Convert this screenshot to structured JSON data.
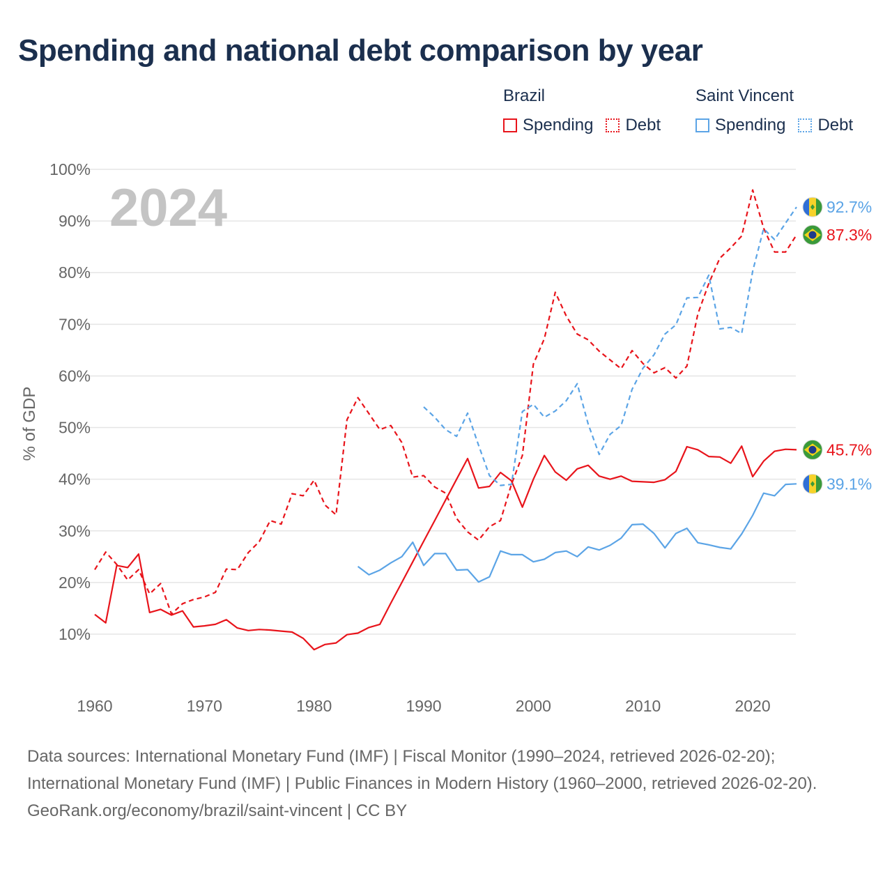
{
  "title": "Spending and national debt comparison by year",
  "legend": {
    "groups": [
      {
        "country": "Brazil",
        "items": [
          {
            "label": "Spending",
            "style": "solid",
            "color": "#e8141b"
          },
          {
            "label": "Debt",
            "style": "dotted",
            "color": "#e8141b"
          }
        ]
      },
      {
        "country": "Saint Vincent",
        "items": [
          {
            "label": "Spending",
            "style": "solid",
            "color": "#5ba4e6"
          },
          {
            "label": "Debt",
            "style": "dotted",
            "color": "#5ba4e6"
          }
        ]
      }
    ]
  },
  "year_watermark": "2024",
  "colors": {
    "brazil": "#e8141b",
    "saint_vincent": "#5ba4e6",
    "grid": "#e5e5e5",
    "axis_text": "#666666",
    "title": "#1b2f4e",
    "watermark": "#c4c4c4"
  },
  "chart_data": {
    "type": "line",
    "title": "Spending and national debt comparison by year",
    "xlabel": "",
    "ylabel": "% of GDP",
    "xlim": [
      1960,
      2024
    ],
    "ylim": [
      0,
      100
    ],
    "x_ticks": [
      "1960",
      "1970",
      "1980",
      "1990",
      "2000",
      "2010",
      "2020"
    ],
    "y_ticks": [
      "10%",
      "20%",
      "30%",
      "40%",
      "50%",
      "60%",
      "70%",
      "80%",
      "90%",
      "100%"
    ],
    "series": [
      {
        "name": "Brazil Spending",
        "country": "Brazil",
        "style": "solid",
        "color": "#e8141b",
        "x": [
          1960,
          1961,
          1962,
          1963,
          1964,
          1965,
          1966,
          1967,
          1968,
          1969,
          1970,
          1971,
          1972,
          1973,
          1974,
          1975,
          1976,
          1977,
          1978,
          1979,
          1980,
          1981,
          1982,
          1983,
          1984,
          1985,
          1986,
          1987,
          1988,
          1989,
          1990,
          1991,
          1992,
          1993,
          1994,
          1995,
          1996,
          1997,
          1998,
          1999,
          2000,
          2001,
          2002,
          2003,
          2004,
          2005,
          2006,
          2007,
          2008,
          2009,
          2010,
          2011,
          2012,
          2013,
          2014,
          2015,
          2016,
          2017,
          2018,
          2019,
          2020,
          2021,
          2022,
          2023,
          2024
        ],
        "values": [
          13.8,
          12.2,
          23.3,
          22.9,
          25.5,
          14.2,
          14.8,
          13.7,
          14.5,
          11.4,
          11.6,
          11.9,
          12.8,
          11.2,
          10.7,
          10.9,
          10.8,
          10.6,
          10.4,
          9.2,
          7.0,
          8.0,
          8.3,
          9.9,
          10.2,
          11.3,
          11.9,
          16.0,
          20.0,
          24.0,
          28.0,
          32.0,
          36.0,
          40.0,
          44.0,
          38.3,
          38.6,
          41.3,
          39.7,
          34.6,
          40.0,
          44.6,
          41.4,
          39.8,
          42.0,
          42.7,
          40.6,
          40.0,
          40.6,
          39.6,
          39.5,
          39.4,
          39.9,
          41.5,
          46.3,
          45.7,
          44.4,
          44.3,
          43.1,
          46.4,
          40.5,
          43.5,
          45.4,
          45.8,
          45.7
        ]
      },
      {
        "name": "Brazil Debt",
        "country": "Brazil",
        "style": "dotted",
        "color": "#e8141b",
        "x": [
          1960,
          1961,
          1962,
          1963,
          1964,
          1965,
          1966,
          1967,
          1968,
          1969,
          1970,
          1971,
          1972,
          1973,
          1974,
          1975,
          1976,
          1977,
          1978,
          1979,
          1980,
          1981,
          1982,
          1983,
          1984,
          1985,
          1986,
          1987,
          1988,
          1989,
          1990,
          1991,
          1992,
          1993,
          1994,
          1995,
          1996,
          1997,
          1998,
          1999,
          2000,
          2001,
          2002,
          2003,
          2004,
          2005,
          2006,
          2007,
          2008,
          2009,
          2010,
          2011,
          2012,
          2013,
          2014,
          2015,
          2016,
          2017,
          2018,
          2019,
          2020,
          2021,
          2022,
          2023,
          2024
        ],
        "values": [
          22.5,
          25.9,
          23.5,
          20.5,
          22.5,
          17.8,
          19.8,
          13.9,
          15.9,
          16.7,
          17.2,
          18.1,
          22.6,
          22.5,
          25.8,
          27.9,
          32.0,
          31.3,
          37.2,
          36.8,
          39.8,
          35.0,
          33.1,
          51.5,
          55.8,
          52.7,
          49.6,
          50.4,
          47.1,
          40.4,
          40.7,
          38.5,
          37.3,
          32.4,
          29.8,
          28.2,
          30.8,
          32.0,
          39.0,
          44.6,
          62.3,
          67.2,
          76.2,
          71.6,
          68.1,
          67.0,
          64.8,
          63.1,
          61.4,
          64.9,
          62.4,
          60.6,
          61.6,
          59.6,
          61.9,
          72.0,
          77.9,
          82.8,
          84.8,
          87.1,
          96.0,
          88.6,
          84.0,
          84.0,
          87.3
        ]
      },
      {
        "name": "Saint Vincent Spending",
        "country": "Saint Vincent",
        "style": "solid",
        "color": "#5ba4e6",
        "x": [
          1984,
          1985,
          1986,
          1987,
          1988,
          1989,
          1990,
          1991,
          1992,
          1993,
          1994,
          1995,
          1996,
          1997,
          1998,
          1999,
          2000,
          2001,
          2002,
          2003,
          2004,
          2005,
          2006,
          2007,
          2008,
          2009,
          2010,
          2011,
          2012,
          2013,
          2014,
          2015,
          2016,
          2017,
          2018,
          2019,
          2020,
          2021,
          2022,
          2023,
          2024
        ],
        "values": [
          23.1,
          21.5,
          22.4,
          23.8,
          25.0,
          27.8,
          23.3,
          25.6,
          25.6,
          22.4,
          22.5,
          20.1,
          21.1,
          26.1,
          25.4,
          25.4,
          24.0,
          24.5,
          25.8,
          26.1,
          25.0,
          26.9,
          26.3,
          27.2,
          28.6,
          31.2,
          31.3,
          29.5,
          26.7,
          29.5,
          30.5,
          27.7,
          27.3,
          26.8,
          26.5,
          29.4,
          33.0,
          37.3,
          36.8,
          39.0,
          39.1
        ]
      },
      {
        "name": "Saint Vincent Debt",
        "country": "Saint Vincent",
        "style": "dotted",
        "color": "#5ba4e6",
        "x": [
          1990,
          1991,
          1992,
          1993,
          1994,
          1995,
          1996,
          1997,
          1998,
          1999,
          2000,
          2001,
          2002,
          2003,
          2004,
          2005,
          2006,
          2007,
          2008,
          2009,
          2010,
          2011,
          2012,
          2013,
          2014,
          2015,
          2016,
          2017,
          2018,
          2019,
          2020,
          2021,
          2022,
          2023,
          2024
        ],
        "values": [
          54.0,
          52.0,
          49.6,
          48.3,
          52.8,
          46.6,
          40.7,
          38.8,
          39.0,
          53.1,
          54.5,
          52.0,
          53.2,
          55.2,
          58.5,
          50.7,
          44.8,
          48.7,
          50.4,
          57.4,
          61.5,
          64.1,
          68.1,
          69.9,
          75.1,
          75.2,
          79.5,
          69.1,
          69.4,
          68.2,
          80.3,
          88.5,
          86.4,
          89.6,
          92.7
        ]
      }
    ],
    "end_labels": [
      {
        "series": "Saint Vincent Debt",
        "text": "92.7%",
        "flag": "saint-vincent"
      },
      {
        "series": "Brazil Debt",
        "text": "87.3%",
        "flag": "brazil"
      },
      {
        "series": "Brazil Spending",
        "text": "45.7%",
        "flag": "brazil"
      },
      {
        "series": "Saint Vincent Spending",
        "text": "39.1%",
        "flag": "saint-vincent"
      }
    ]
  },
  "footer": {
    "sources": "Data sources: International Monetary Fund (IMF) | Fiscal Monitor (1990–2024, retrieved 2026-02-20); International Monetary Fund (IMF) | Public Finances in Modern History (1960–2000, retrieved 2026-02-20).",
    "credit": "GeoRank.org/economy/brazil/saint-vincent | CC BY"
  }
}
